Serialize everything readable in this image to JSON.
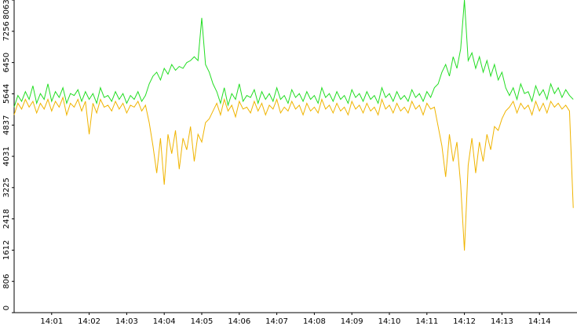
{
  "chart_data": {
    "type": "line",
    "x": [
      0,
      0.1,
      0.2,
      0.3,
      0.4,
      0.5,
      0.6,
      0.7,
      0.8,
      0.9,
      1,
      1.1,
      1.2,
      1.3,
      1.4,
      1.5,
      1.6,
      1.7,
      1.8,
      1.9,
      2,
      2.1,
      2.2,
      2.3,
      2.4,
      2.5,
      2.6,
      2.7,
      2.8,
      2.9,
      3,
      3.1,
      3.2,
      3.3,
      3.4,
      3.5,
      3.6,
      3.7,
      3.8,
      3.9,
      4,
      4.1,
      4.2,
      4.3,
      4.4,
      4.5,
      4.6,
      4.7,
      4.8,
      4.9,
      5,
      5.1,
      5.2,
      5.3,
      5.4,
      5.5,
      5.6,
      5.7,
      5.8,
      5.9,
      6,
      6.1,
      6.2,
      6.3,
      6.4,
      6.5,
      6.6,
      6.7,
      6.8,
      6.9,
      7,
      7.1,
      7.2,
      7.3,
      7.4,
      7.5,
      7.6,
      7.7,
      7.8,
      7.9,
      8,
      8.1,
      8.2,
      8.3,
      8.4,
      8.5,
      8.6,
      8.7,
      8.8,
      8.9,
      9,
      9.1,
      9.2,
      9.3,
      9.4,
      9.5,
      9.6,
      9.7,
      9.8,
      9.9,
      10,
      10.1,
      10.2,
      10.3,
      10.4,
      10.5,
      10.6,
      10.7,
      10.8,
      10.9,
      11,
      11.1,
      11.2,
      11.3,
      11.4,
      11.5,
      11.6,
      11.7,
      11.8,
      11.9,
      12,
      12.1,
      12.2,
      12.3,
      12.4,
      12.5,
      12.6,
      12.7,
      12.8,
      12.9,
      13,
      13.1,
      13.2,
      13.3,
      13.4,
      13.5,
      13.6,
      13.7,
      13.8,
      13.9,
      14,
      14.1,
      14.2,
      14.3,
      14.4,
      14.5,
      14.6,
      14.7,
      14.8,
      14.9
    ],
    "series": [
      {
        "color": "#22dd22",
        "values": [
          5300,
          5600,
          5450,
          5700,
          5500,
          5850,
          5400,
          5650,
          5500,
          5900,
          5450,
          5700,
          5550,
          5800,
          5400,
          5650,
          5600,
          5750,
          5450,
          5700,
          5500,
          5650,
          5400,
          5800,
          5550,
          5600,
          5450,
          5700,
          5500,
          5650,
          5400,
          5600,
          5500,
          5700,
          5450,
          5600,
          5900,
          6100,
          6200,
          6000,
          6300,
          6150,
          6400,
          6250,
          6350,
          6300,
          6450,
          6500,
          6600,
          6500,
          7600,
          6400,
          6200,
          5900,
          5700,
          5400,
          5800,
          5350,
          5650,
          5500,
          5900,
          5450,
          5600,
          5550,
          5750,
          5400,
          5700,
          5500,
          5650,
          5450,
          5800,
          5500,
          5600,
          5400,
          5750,
          5550,
          5650,
          5450,
          5700,
          5500,
          5600,
          5400,
          5800,
          5550,
          5650,
          5450,
          5700,
          5500,
          5600,
          5400,
          5750,
          5550,
          5650,
          5450,
          5700,
          5500,
          5600,
          5400,
          5800,
          5550,
          5650,
          5450,
          5700,
          5500,
          5600,
          5450,
          5750,
          5550,
          5650,
          5450,
          5700,
          5550,
          5800,
          5900,
          6200,
          6400,
          6100,
          6600,
          6300,
          6800,
          8063,
          6500,
          6700,
          6300,
          6600,
          6200,
          6500,
          6100,
          6400,
          6000,
          6200,
          5800,
          5600,
          5800,
          5500,
          5900,
          5650,
          5700,
          5450,
          5850,
          5600,
          5750,
          5500,
          5900,
          5650,
          5800,
          5550,
          5750,
          5600,
          5500
        ]
      },
      {
        "color": "#f0b400",
        "values": [
          5100,
          5400,
          5250,
          5500,
          5300,
          5450,
          5150,
          5400,
          5250,
          5500,
          5200,
          5450,
          5300,
          5550,
          5100,
          5400,
          5300,
          5500,
          5200,
          5450,
          4600,
          5400,
          5150,
          5500,
          5300,
          5350,
          5200,
          5450,
          5250,
          5400,
          5150,
          5350,
          5300,
          5450,
          5200,
          5350,
          4900,
          4300,
          3600,
          4500,
          3300,
          4600,
          4100,
          4700,
          3700,
          4500,
          4200,
          4800,
          3900,
          4600,
          4400,
          4900,
          5000,
          5200,
          5400,
          5100,
          5500,
          5200,
          5350,
          5050,
          5450,
          5250,
          5300,
          5150,
          5450,
          5200,
          5400,
          5100,
          5350,
          5250,
          5500,
          5150,
          5300,
          5200,
          5450,
          5250,
          5350,
          5100,
          5400,
          5200,
          5300,
          5150,
          5500,
          5250,
          5350,
          5150,
          5400,
          5200,
          5300,
          5100,
          5450,
          5250,
          5350,
          5150,
          5400,
          5200,
          5300,
          5100,
          5500,
          5250,
          5350,
          5150,
          5400,
          5200,
          5300,
          5150,
          5450,
          5250,
          5350,
          5100,
          5400,
          5250,
          5300,
          4800,
          4300,
          3500,
          4600,
          3900,
          4400,
          3300,
          1600,
          3800,
          4500,
          3600,
          4400,
          3900,
          4600,
          4200,
          4800,
          4700,
          5000,
          5200,
          5300,
          5450,
          5150,
          5400,
          5250,
          5350,
          5100,
          5450,
          5200,
          5400,
          5150,
          5450,
          5300,
          5400,
          5250,
          5350,
          5200,
          2700
        ]
      }
    ],
    "xlim": [
      0,
      15
    ],
    "xticks": [
      {
        "value": 1,
        "label": "14:01"
      },
      {
        "value": 2,
        "label": "14:02"
      },
      {
        "value": 3,
        "label": "14:03"
      },
      {
        "value": 4,
        "label": "14:04"
      },
      {
        "value": 5,
        "label": "14:05"
      },
      {
        "value": 6,
        "label": "14:06"
      },
      {
        "value": 7,
        "label": "14:07"
      },
      {
        "value": 8,
        "label": "14:08"
      },
      {
        "value": 9,
        "label": "14:09"
      },
      {
        "value": 10,
        "label": "14:10"
      },
      {
        "value": 11,
        "label": "14:11"
      },
      {
        "value": 12,
        "label": "14:12"
      },
      {
        "value": 13,
        "label": "14:13"
      },
      {
        "value": 14,
        "label": "14:14"
      }
    ],
    "ylim": [
      0,
      8063
    ],
    "yticks": [
      0,
      806,
      1612,
      2418,
      3225,
      4031,
      4837,
      5644,
      6450,
      7256,
      8063
    ]
  }
}
